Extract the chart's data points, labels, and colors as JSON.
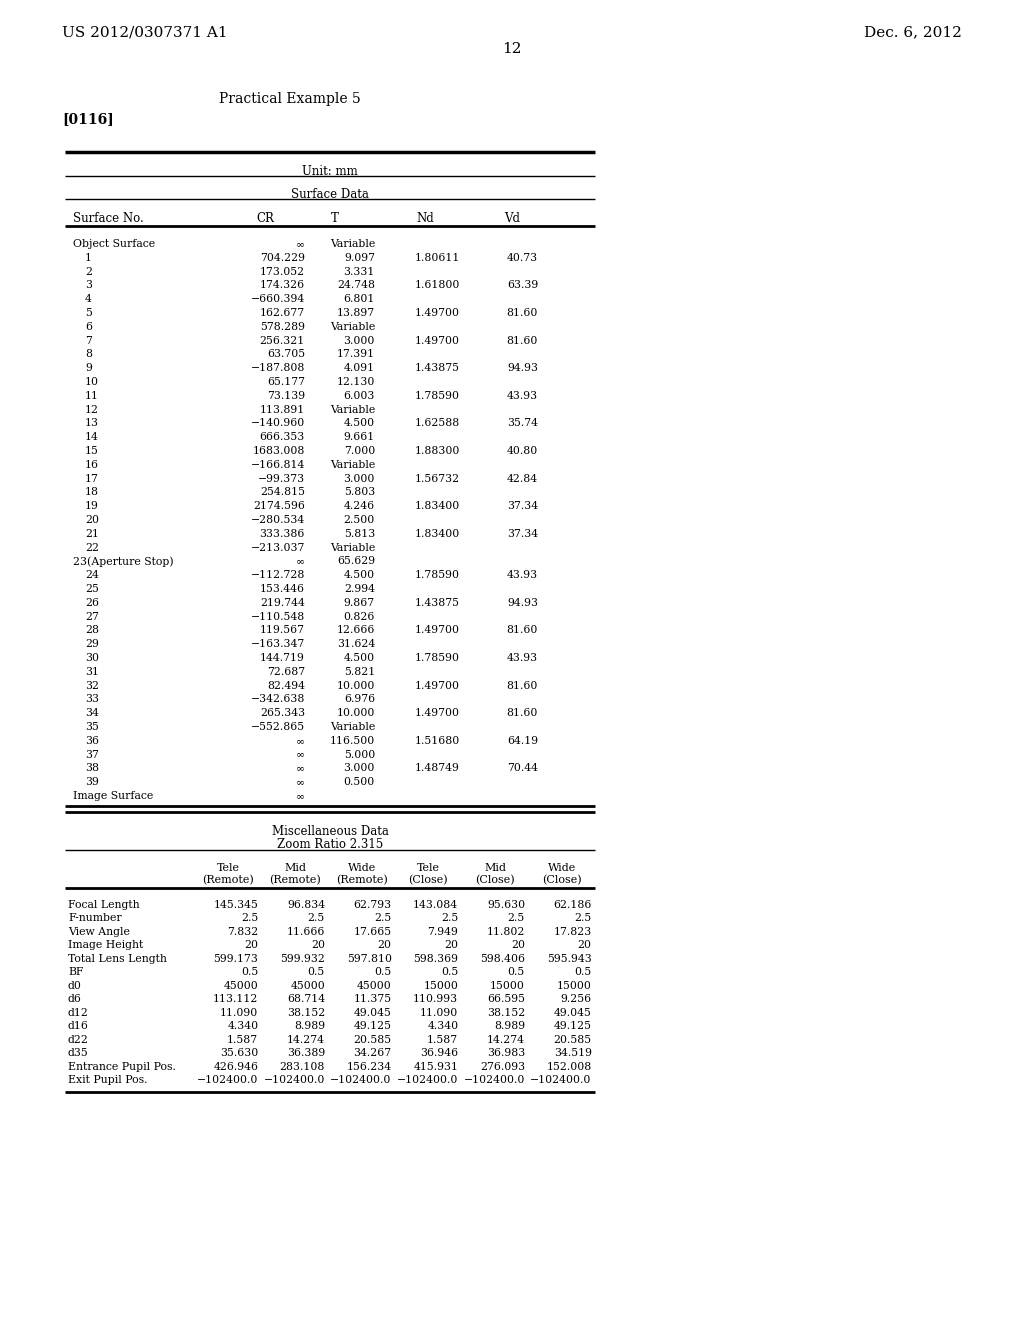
{
  "header_left": "US 2012/0307371 A1",
  "header_right": "Dec. 6, 2012",
  "page_number": "12",
  "section_title": "Practical Example 5",
  "paragraph_ref": "[0116]",
  "table1_unit": "Unit: mm",
  "table1_section": "Surface Data",
  "table1_headers": [
    "Surface No.",
    "CR",
    "T",
    "Nd",
    "Vd"
  ],
  "surface_data": [
    [
      "Object Surface",
      "∞",
      "Variable",
      "",
      ""
    ],
    [
      "1",
      "704.229",
      "9.097",
      "1.80611",
      "40.73"
    ],
    [
      "2",
      "173.052",
      "3.331",
      "",
      ""
    ],
    [
      "3",
      "174.326",
      "24.748",
      "1.61800",
      "63.39"
    ],
    [
      "4",
      "−660.394",
      "6.801",
      "",
      ""
    ],
    [
      "5",
      "162.677",
      "13.897",
      "1.49700",
      "81.60"
    ],
    [
      "6",
      "578.289",
      "Variable",
      "",
      ""
    ],
    [
      "7",
      "256.321",
      "3.000",
      "1.49700",
      "81.60"
    ],
    [
      "8",
      "63.705",
      "17.391",
      "",
      ""
    ],
    [
      "9",
      "−187.808",
      "4.091",
      "1.43875",
      "94.93"
    ],
    [
      "10",
      "65.177",
      "12.130",
      "",
      ""
    ],
    [
      "11",
      "73.139",
      "6.003",
      "1.78590",
      "43.93"
    ],
    [
      "12",
      "113.891",
      "Variable",
      "",
      ""
    ],
    [
      "13",
      "−140.960",
      "4.500",
      "1.62588",
      "35.74"
    ],
    [
      "14",
      "666.353",
      "9.661",
      "",
      ""
    ],
    [
      "15",
      "1683.008",
      "7.000",
      "1.88300",
      "40.80"
    ],
    [
      "16",
      "−166.814",
      "Variable",
      "",
      ""
    ],
    [
      "17",
      "−99.373",
      "3.000",
      "1.56732",
      "42.84"
    ],
    [
      "18",
      "254.815",
      "5.803",
      "",
      ""
    ],
    [
      "19",
      "2174.596",
      "4.246",
      "1.83400",
      "37.34"
    ],
    [
      "20",
      "−280.534",
      "2.500",
      "",
      ""
    ],
    [
      "21",
      "333.386",
      "5.813",
      "1.83400",
      "37.34"
    ],
    [
      "22",
      "−213.037",
      "Variable",
      "",
      ""
    ],
    [
      "23(Aperture Stop)",
      "∞",
      "65.629",
      "",
      ""
    ],
    [
      "24",
      "−112.728",
      "4.500",
      "1.78590",
      "43.93"
    ],
    [
      "25",
      "153.446",
      "2.994",
      "",
      ""
    ],
    [
      "26",
      "219.744",
      "9.867",
      "1.43875",
      "94.93"
    ],
    [
      "27",
      "−110.548",
      "0.826",
      "",
      ""
    ],
    [
      "28",
      "119.567",
      "12.666",
      "1.49700",
      "81.60"
    ],
    [
      "29",
      "−163.347",
      "31.624",
      "",
      ""
    ],
    [
      "30",
      "144.719",
      "4.500",
      "1.78590",
      "43.93"
    ],
    [
      "31",
      "72.687",
      "5.821",
      "",
      ""
    ],
    [
      "32",
      "82.494",
      "10.000",
      "1.49700",
      "81.60"
    ],
    [
      "33",
      "−342.638",
      "6.976",
      "",
      ""
    ],
    [
      "34",
      "265.343",
      "10.000",
      "1.49700",
      "81.60"
    ],
    [
      "35",
      "−552.865",
      "Variable",
      "",
      ""
    ],
    [
      "36",
      "∞",
      "116.500",
      "1.51680",
      "64.19"
    ],
    [
      "37",
      "∞",
      "5.000",
      "",
      ""
    ],
    [
      "38",
      "∞",
      "3.000",
      "1.48749",
      "70.44"
    ],
    [
      "39",
      "∞",
      "0.500",
      "",
      ""
    ],
    [
      "Image Surface",
      "∞",
      "",
      "",
      ""
    ]
  ],
  "misc_title": "Miscellaneous Data",
  "misc_subtitle": "Zoom Ratio 2.315",
  "misc_data": [
    [
      "Focal Length",
      "145.345",
      "96.834",
      "62.793",
      "143.084",
      "95.630",
      "62.186"
    ],
    [
      "F-number",
      "2.5",
      "2.5",
      "2.5",
      "2.5",
      "2.5",
      "2.5"
    ],
    [
      "View Angle",
      "7.832",
      "11.666",
      "17.665",
      "7.949",
      "11.802",
      "17.823"
    ],
    [
      "Image Height",
      "20",
      "20",
      "20",
      "20",
      "20",
      "20"
    ],
    [
      "Total Lens Length",
      "599.173",
      "599.932",
      "597.810",
      "598.369",
      "598.406",
      "595.943"
    ],
    [
      "BF",
      "0.5",
      "0.5",
      "0.5",
      "0.5",
      "0.5",
      "0.5"
    ],
    [
      "d0",
      "45000",
      "45000",
      "45000",
      "15000",
      "15000",
      "15000"
    ],
    [
      "d6",
      "113.112",
      "68.714",
      "11.375",
      "110.993",
      "66.595",
      "9.256"
    ],
    [
      "d12",
      "11.090",
      "38.152",
      "49.045",
      "11.090",
      "38.152",
      "49.045"
    ],
    [
      "d16",
      "4.340",
      "8.989",
      "49.125",
      "4.340",
      "8.989",
      "49.125"
    ],
    [
      "d22",
      "1.587",
      "14.274",
      "20.585",
      "1.587",
      "14.274",
      "20.585"
    ],
    [
      "d35",
      "35.630",
      "36.389",
      "34.267",
      "36.946",
      "36.983",
      "34.519"
    ],
    [
      "Entrance Pupil Pos.",
      "426.946",
      "283.108",
      "156.234",
      "415.931",
      "276.093",
      "152.008"
    ],
    [
      "Exit Pupil Pos.",
      "−102400.0",
      "−102400.0",
      "−102400.0",
      "−102400.0",
      "−102400.0",
      "−102400.0"
    ]
  ],
  "bg_color": "#ffffff",
  "text_color": "#000000"
}
